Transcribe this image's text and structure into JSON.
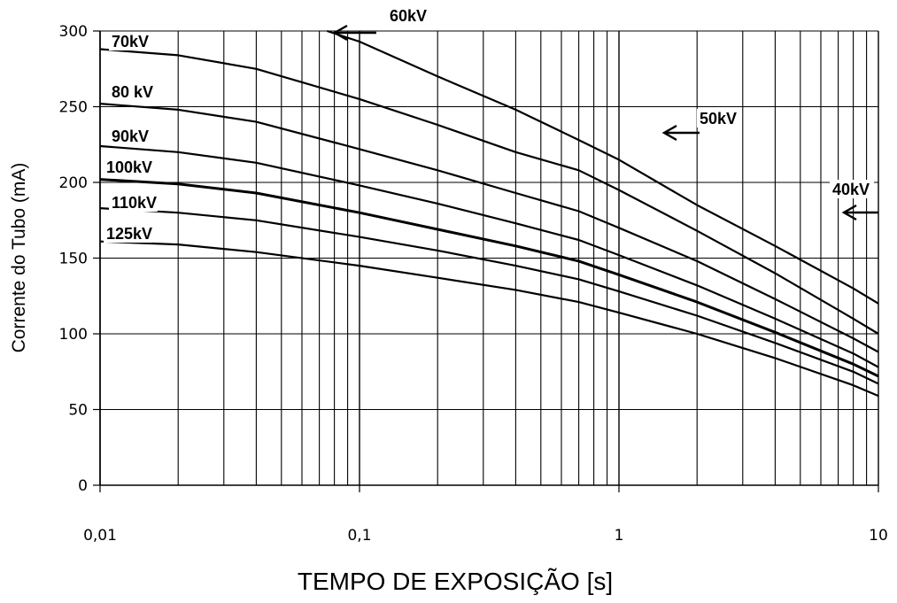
{
  "chart_data": {
    "type": "line",
    "title": "",
    "xlabel": "TEMPO DE EXPOSIÇÃO [s]",
    "ylabel": "Corrente do Tubo (mA)",
    "xscale": "log",
    "xlim": [
      0.01,
      10
    ],
    "ylim": [
      0,
      300
    ],
    "grid": true,
    "x_ticks": [
      0.01,
      0.1,
      1,
      10
    ],
    "x_tick_labels": [
      "0,01",
      "0,1",
      "1",
      "10"
    ],
    "y_ticks": [
      0,
      50,
      100,
      150,
      200,
      250,
      300
    ],
    "y_tick_labels": [
      "0",
      "50",
      "100",
      "150",
      "200",
      "250",
      "300"
    ],
    "series": [
      {
        "name": "60kV",
        "x": [
          0.075,
          0.1,
          0.2,
          0.4,
          0.7,
          1,
          2,
          4,
          8,
          10
        ],
        "y": [
          300,
          293,
          270,
          248,
          228,
          215,
          185,
          158,
          130,
          120
        ]
      },
      {
        "name": "70kV",
        "x": [
          0.01,
          0.02,
          0.04,
          0.1,
          0.2,
          0.4,
          0.7,
          1,
          2,
          4,
          8,
          10
        ],
        "y": [
          288,
          284,
          275,
          255,
          238,
          220,
          208,
          195,
          168,
          140,
          110,
          100
        ]
      },
      {
        "name": "80 kV",
        "x": [
          0.01,
          0.02,
          0.04,
          0.1,
          0.2,
          0.4,
          0.7,
          1,
          2,
          4,
          8,
          10
        ],
        "y": [
          252,
          248,
          240,
          222,
          208,
          193,
          181,
          170,
          148,
          123,
          97,
          88
        ]
      },
      {
        "name": "90kV",
        "x": [
          0.01,
          0.02,
          0.04,
          0.1,
          0.2,
          0.4,
          0.7,
          1,
          2,
          4,
          8,
          10
        ],
        "y": [
          224,
          220,
          213,
          198,
          186,
          173,
          162,
          152,
          132,
          110,
          87,
          78
        ]
      },
      {
        "name": "100kV",
        "x": [
          0.01,
          0.02,
          0.04,
          0.1,
          0.2,
          0.4,
          0.7,
          1,
          2,
          4,
          8,
          10
        ],
        "y": [
          202,
          199,
          193,
          180,
          169,
          158,
          148,
          139,
          121,
          101,
          80,
          72
        ]
      },
      {
        "name": "110kV",
        "x": [
          0.01,
          0.02,
          0.04,
          0.1,
          0.2,
          0.4,
          0.7,
          1,
          2,
          4,
          8,
          10
        ],
        "y": [
          183,
          180,
          175,
          164,
          155,
          145,
          136,
          128,
          112,
          94,
          75,
          67
        ]
      },
      {
        "name": "125kV",
        "x": [
          0.01,
          0.02,
          0.04,
          0.1,
          0.2,
          0.4,
          0.7,
          1,
          2,
          4,
          8,
          10
        ],
        "y": [
          161,
          159,
          154,
          145,
          137,
          129,
          121,
          114,
          100,
          84,
          66,
          59
        ]
      }
    ],
    "annotations": [
      {
        "text": "60kV",
        "points_to": "60kV"
      },
      {
        "text": "50kV",
        "points_to": "60kV"
      },
      {
        "text": "40kV",
        "points_to": "70kV"
      }
    ]
  }
}
